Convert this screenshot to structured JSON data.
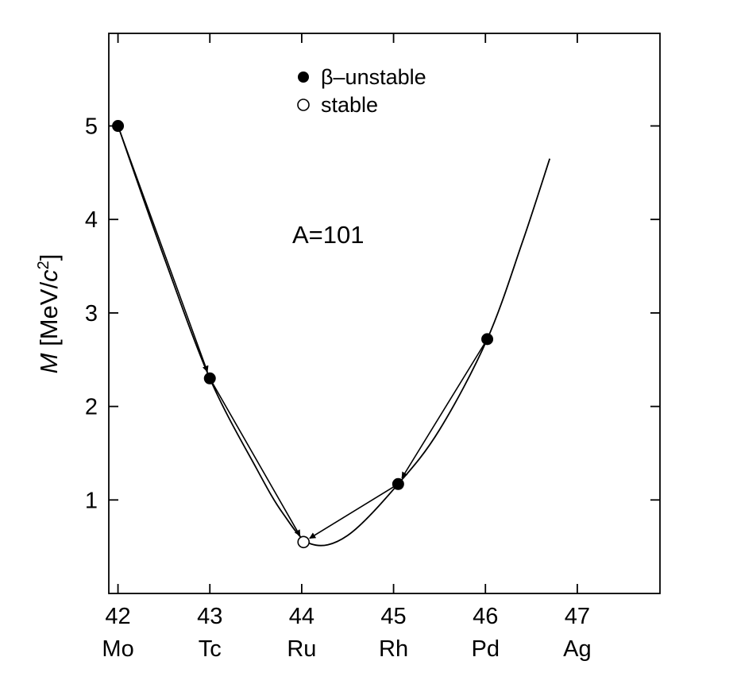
{
  "chart_data": {
    "type": "scatter",
    "annotation": "A=101",
    "ylabel": {
      "symbol": "M",
      "unit_open": " [MeV/",
      "unit_var": "c",
      "unit_exp": "2",
      "unit_close": "]"
    },
    "xlim": [
      41.9,
      47.9
    ],
    "ylim": [
      0,
      5.99
    ],
    "x_ticks": [
      {
        "value": 42,
        "number": "42",
        "element": "Mo"
      },
      {
        "value": 43,
        "number": "43",
        "element": "Tc"
      },
      {
        "value": 44,
        "number": "44",
        "element": "Ru"
      },
      {
        "value": 45,
        "number": "45",
        "element": "Rh"
      },
      {
        "value": 46,
        "number": "46",
        "element": "Pd"
      },
      {
        "value": 47,
        "number": "47",
        "element": "Ag"
      }
    ],
    "y_ticks": [
      {
        "value": 1,
        "label": "1"
      },
      {
        "value": 2,
        "label": "2"
      },
      {
        "value": 3,
        "label": "3"
      },
      {
        "value": 4,
        "label": "4"
      },
      {
        "value": 5,
        "label": "5"
      }
    ],
    "legend": {
      "position": "top-center",
      "entries": [
        {
          "label": "β–unstable",
          "marker": "filled-circle"
        },
        {
          "label": "stable",
          "marker": "open-circle"
        }
      ]
    },
    "series": [
      {
        "name": "β–unstable",
        "marker": "filled",
        "points": [
          {
            "x": 42,
            "y": 5.0
          },
          {
            "x": 43,
            "y": 2.3
          },
          {
            "x": 45.05,
            "y": 1.17
          },
          {
            "x": 46.02,
            "y": 2.72
          }
        ]
      },
      {
        "name": "stable",
        "marker": "open",
        "points": [
          {
            "x": 44.02,
            "y": 0.55
          }
        ]
      }
    ],
    "curve": {
      "points": [
        {
          "x": 42.0,
          "y": 5.0
        },
        {
          "x": 42.5,
          "y": 3.6
        },
        {
          "x": 43.0,
          "y": 2.3
        },
        {
          "x": 43.5,
          "y": 1.35
        },
        {
          "x": 43.8,
          "y": 0.85
        },
        {
          "x": 44.1,
          "y": 0.53
        },
        {
          "x": 44.5,
          "y": 0.62
        },
        {
          "x": 45.05,
          "y": 1.17
        },
        {
          "x": 45.5,
          "y": 1.75
        },
        {
          "x": 46.02,
          "y": 2.72
        },
        {
          "x": 46.4,
          "y": 3.75
        },
        {
          "x": 46.7,
          "y": 4.65
        }
      ]
    },
    "decays": [
      {
        "from": {
          "x": 42,
          "y": 5.0
        },
        "to": {
          "x": 43,
          "y": 2.3
        }
      },
      {
        "from": {
          "x": 43,
          "y": 2.3
        },
        "to": {
          "x": 44.02,
          "y": 0.55
        }
      },
      {
        "from": {
          "x": 46.02,
          "y": 2.72
        },
        "to": {
          "x": 45.05,
          "y": 1.17
        }
      },
      {
        "from": {
          "x": 45.05,
          "y": 1.17
        },
        "to": {
          "x": 44.02,
          "y": 0.55
        }
      }
    ],
    "grid": false
  }
}
